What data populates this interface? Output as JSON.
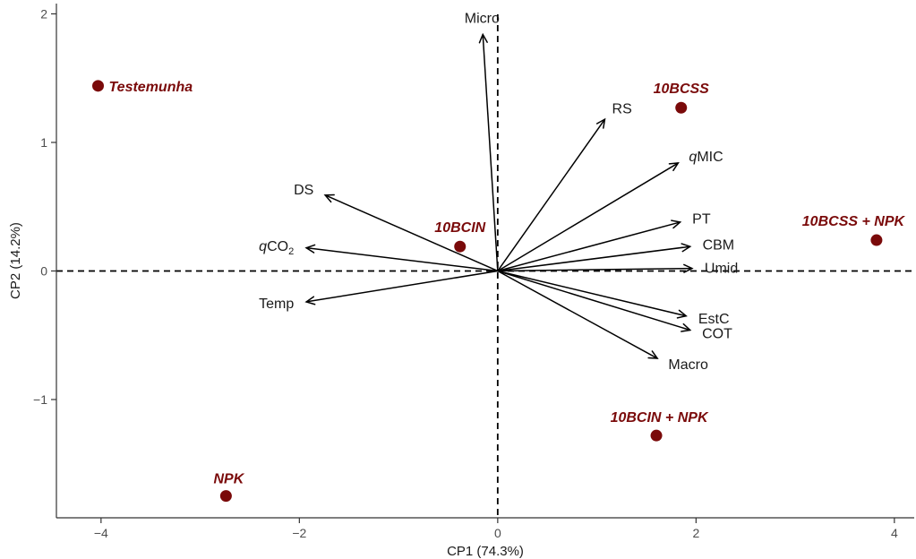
{
  "chart_data": {
    "type": "scatter",
    "subtype": "pca-biplot",
    "xlabel": "CP1 (74.3%)",
    "ylabel": "CP2 (14.2%)",
    "xlim": [
      -4.45,
      4.2
    ],
    "ylim": [
      -1.92,
      2.08
    ],
    "x_ticks": [
      -4,
      -2,
      0,
      2,
      4
    ],
    "y_ticks": [
      -1,
      0,
      1,
      2
    ],
    "reference_lines": {
      "x": 0,
      "y": 0,
      "style": "dashed"
    },
    "grid": false,
    "legend": "none",
    "point_color": "#7a0a0a",
    "points": [
      {
        "label": "Testemunha",
        "x": -4.03,
        "y": 1.44
      },
      {
        "label": "10BCSS",
        "x": 1.85,
        "y": 1.27
      },
      {
        "label": "10BCIN",
        "x": -0.38,
        "y": 0.19
      },
      {
        "label": "10BCSS + NPK",
        "x": 3.82,
        "y": 0.24
      },
      {
        "label": "10BCIN + NPK",
        "x": 1.6,
        "y": -1.28
      },
      {
        "label": "NPK",
        "x": -2.74,
        "y": -1.75
      }
    ],
    "vectors": [
      {
        "label": "Micro",
        "x": -0.15,
        "y": 1.84
      },
      {
        "label": "RS",
        "x": 1.08,
        "y": 1.18
      },
      {
        "label": "MIC",
        "italic_prefix": "q",
        "x": 1.82,
        "y": 0.84
      },
      {
        "label": "DS",
        "x": -1.74,
        "y": 0.59
      },
      {
        "label": "PT",
        "x": 1.84,
        "y": 0.38
      },
      {
        "label": "CBM",
        "x": 1.94,
        "y": 0.19
      },
      {
        "label": "CO",
        "italic_prefix": "q",
        "subscript": "2",
        "x": -1.93,
        "y": 0.18
      },
      {
        "label": "Umid",
        "x": 1.96,
        "y": 0.02
      },
      {
        "label": "Temp",
        "x": -1.93,
        "y": -0.24
      },
      {
        "label": "EstC",
        "x": 1.9,
        "y": -0.35
      },
      {
        "label": "COT",
        "x": 1.94,
        "y": -0.46
      },
      {
        "label": "Macro",
        "x": 1.61,
        "y": -0.68
      }
    ]
  }
}
